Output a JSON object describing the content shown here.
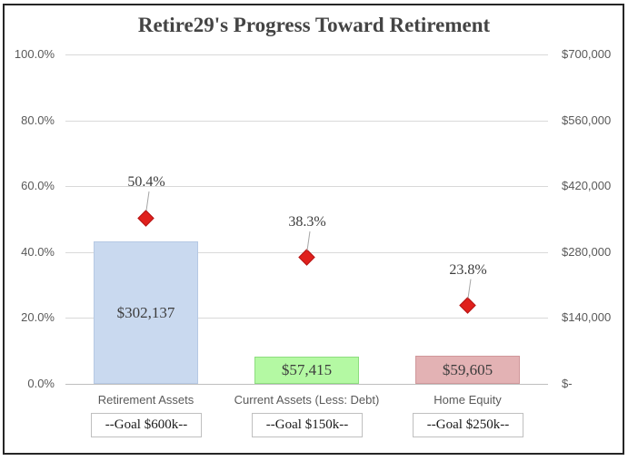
{
  "chart_data": {
    "type": "bar",
    "title": "Retire29's Progress Toward Retirement",
    "categories": [
      "Retirement Assets",
      "Current Assets (Less: Debt)",
      "Home Equity"
    ],
    "goal_labels": [
      "--Goal $600k--",
      "--Goal $150k--",
      "--Goal $250k--"
    ],
    "bar_series": {
      "name": "Current Value ($)",
      "axis": "right",
      "values": [
        302137,
        57415,
        59605
      ],
      "value_labels": [
        "$302,137",
        "$57,415",
        "$59,605"
      ],
      "fill_colors": [
        "#c9d9ef",
        "#b4f9a3",
        "#e3b2b4"
      ],
      "border_colors": [
        "#b6c9e4",
        "#8ddd7f",
        "#d0989b"
      ]
    },
    "marker_series": {
      "name": "Progress (%)",
      "axis": "left",
      "marker": "diamond",
      "values": [
        50.4,
        38.3,
        23.8
      ],
      "value_labels": [
        "50.4%",
        "38.3%",
        "23.8%"
      ]
    },
    "left_axis": {
      "min": 0,
      "max": 100,
      "tick_labels": [
        "100.0%",
        "80.0%",
        "60.0%",
        "40.0%",
        "20.0%",
        "0.0%"
      ]
    },
    "right_axis": {
      "min": 0,
      "max": 700000,
      "tick_labels": [
        "$700,000",
        "$560,000",
        "$420,000",
        "$280,000",
        "$140,000",
        "$-"
      ]
    },
    "grid": true,
    "legend": "none",
    "colors": {
      "marker_fill": "#e0201c",
      "marker_border": "#b51414",
      "gridline": "#d9d9d9",
      "axis_line": "#bfbfbf",
      "axis_text": "#595959",
      "data_label": "#3d3d3d",
      "title_text": "#444444",
      "leader_line": "#a6a6a6",
      "frame_border": "#262626",
      "goal_box_border": "#bfbfbf",
      "background": "#ffffff"
    }
  }
}
